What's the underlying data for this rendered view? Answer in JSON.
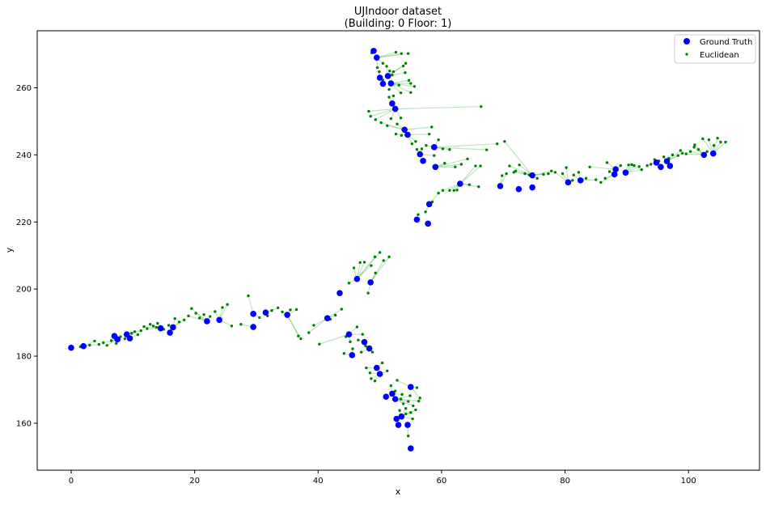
{
  "chart_data": {
    "type": "scatter",
    "title": "UJIndoor dataset",
    "subtitle": "(Building: 0 Floor: 1)",
    "xlabel": "x",
    "ylabel": "y",
    "xlim": [
      -5.5,
      111.5
    ],
    "ylim": [
      146,
      277
    ],
    "xticks": [
      0,
      20,
      40,
      60,
      80,
      100
    ],
    "yticks": [
      160,
      180,
      200,
      220,
      240,
      260
    ],
    "grid": false,
    "legend_position": "top-right",
    "colors": {
      "ground_truth": "#0000ff",
      "euclidean": "#008000",
      "link": "#6fbf6f"
    },
    "series": [
      {
        "name": "Ground Truth",
        "marker": "circle",
        "points": [
          [
            0,
            182.5
          ],
          [
            2,
            183
          ],
          [
            7,
            186
          ],
          [
            7.5,
            185
          ],
          [
            9,
            186.5
          ],
          [
            9.5,
            185.3
          ],
          [
            14.5,
            188.3
          ],
          [
            16,
            187
          ],
          [
            16.5,
            188.6
          ],
          [
            22,
            190.4
          ],
          [
            24,
            190.8
          ],
          [
            29.5,
            188.7
          ],
          [
            29.5,
            192.6
          ],
          [
            31.5,
            193
          ],
          [
            35,
            192.3
          ],
          [
            41.5,
            191.3
          ],
          [
            43.5,
            198.8
          ],
          [
            46.3,
            203
          ],
          [
            48.5,
            202
          ],
          [
            45,
            186.5
          ],
          [
            47.5,
            184.2
          ],
          [
            48.3,
            182.3
          ],
          [
            45.5,
            180.3
          ],
          [
            49.5,
            176.5
          ],
          [
            50,
            174.7
          ],
          [
            52,
            168.8
          ],
          [
            51,
            167.9
          ],
          [
            52.5,
            167.2
          ],
          [
            55,
            170.8
          ],
          [
            53.5,
            162
          ],
          [
            52.7,
            161.3
          ],
          [
            53,
            159.5
          ],
          [
            54.5,
            159.5
          ],
          [
            55,
            152.5
          ],
          [
            49,
            271
          ],
          [
            49.5,
            269
          ],
          [
            50,
            263
          ],
          [
            50.5,
            261.2
          ],
          [
            51.3,
            263.5
          ],
          [
            51.8,
            261.3
          ],
          [
            52,
            255.3
          ],
          [
            52.5,
            253.7
          ],
          [
            54,
            247.5
          ],
          [
            54.5,
            246
          ],
          [
            56.5,
            240.2
          ],
          [
            57,
            238.2
          ],
          [
            58.8,
            242.3
          ],
          [
            59,
            236.4
          ],
          [
            63,
            231.4
          ],
          [
            58,
            225.3
          ],
          [
            56,
            220.7
          ],
          [
            57.8,
            219.5
          ],
          [
            69.5,
            230.7
          ],
          [
            72.5,
            229.8
          ],
          [
            74.7,
            230.3
          ],
          [
            74.7,
            233.9
          ],
          [
            80.5,
            231.8
          ],
          [
            82.5,
            232.4
          ],
          [
            88,
            234.2
          ],
          [
            88.2,
            235.7
          ],
          [
            89.8,
            234.7
          ],
          [
            94.8,
            237.7
          ],
          [
            95.5,
            236.4
          ],
          [
            96.5,
            238.1
          ],
          [
            97,
            236.7
          ],
          [
            102.5,
            240
          ],
          [
            104,
            240.4
          ]
        ]
      },
      {
        "name": "Euclidean",
        "marker": "small-circle",
        "points": [
          [
            1.5,
            182.8
          ],
          [
            3,
            183.3
          ],
          [
            3.8,
            184.5
          ],
          [
            4.5,
            183.5
          ],
          [
            5.2,
            184
          ],
          [
            5.8,
            183.2
          ],
          [
            6.5,
            184.6
          ],
          [
            7.3,
            183.8
          ],
          [
            8,
            185.8
          ],
          [
            8.7,
            185.2
          ],
          [
            9.8,
            186.8
          ],
          [
            10.3,
            187.3
          ],
          [
            10.8,
            186.4
          ],
          [
            11.3,
            187.6
          ],
          [
            11.8,
            188.8
          ],
          [
            12.3,
            188.2
          ],
          [
            12.8,
            189.5
          ],
          [
            13.3,
            189
          ],
          [
            13.8,
            188.6
          ],
          [
            14,
            189.8
          ],
          [
            15,
            188
          ],
          [
            15.8,
            189.2
          ],
          [
            16.8,
            191.2
          ],
          [
            17.5,
            190.2
          ],
          [
            18.3,
            190.8
          ],
          [
            19,
            192
          ],
          [
            19.5,
            194.2
          ],
          [
            20.2,
            192.8
          ],
          [
            20.8,
            191.4
          ],
          [
            21.5,
            192.4
          ],
          [
            22.5,
            191.8
          ],
          [
            23.3,
            193.3
          ],
          [
            24.5,
            194.5
          ],
          [
            25.3,
            195.4
          ],
          [
            26,
            189
          ],
          [
            27.5,
            189.5
          ],
          [
            28.7,
            198
          ],
          [
            30.5,
            191.5
          ],
          [
            31.8,
            192
          ],
          [
            32.5,
            193.6
          ],
          [
            33.5,
            194.4
          ],
          [
            34.2,
            193.2
          ],
          [
            35.5,
            193.8
          ],
          [
            36.5,
            193.9
          ],
          [
            37.2,
            185.2
          ],
          [
            36.8,
            186
          ],
          [
            38.5,
            187
          ],
          [
            39.3,
            189.2
          ],
          [
            40.2,
            183.6
          ],
          [
            42,
            191
          ],
          [
            42.8,
            192.2
          ],
          [
            43.8,
            194
          ],
          [
            44.5,
            185.8
          ],
          [
            45.2,
            184.3
          ],
          [
            45.6,
            182.2
          ],
          [
            44.2,
            180.8
          ],
          [
            46.5,
            184.8
          ],
          [
            47,
            181.2
          ],
          [
            47.7,
            183
          ],
          [
            48.8,
            181.2
          ],
          [
            46.3,
            188.7
          ],
          [
            47.2,
            186.5
          ],
          [
            45,
            201.8
          ],
          [
            45.8,
            206.3
          ],
          [
            46.8,
            207.9
          ],
          [
            47.5,
            208
          ],
          [
            48.6,
            207
          ],
          [
            49.2,
            209.6
          ],
          [
            50,
            210.9
          ],
          [
            50.6,
            208.5
          ],
          [
            51.5,
            209.6
          ],
          [
            48.1,
            198.8
          ],
          [
            49.3,
            204.8
          ],
          [
            47.8,
            176.5
          ],
          [
            48.4,
            175
          ],
          [
            48.6,
            173.3
          ],
          [
            49.2,
            172.6
          ],
          [
            50.4,
            178
          ],
          [
            51.2,
            175.6
          ],
          [
            51.8,
            171.2
          ],
          [
            52.8,
            172.8
          ],
          [
            52.5,
            169.6
          ],
          [
            53.4,
            167.2
          ],
          [
            53.8,
            165.8
          ],
          [
            54.2,
            164.4
          ],
          [
            54.6,
            166.5
          ],
          [
            55,
            163.2
          ],
          [
            55.4,
            165.2
          ],
          [
            55.8,
            164
          ],
          [
            56.3,
            166.6
          ],
          [
            56.5,
            167.5
          ],
          [
            54.2,
            162.8
          ],
          [
            55.3,
            161.3
          ],
          [
            54.6,
            156.2
          ],
          [
            53.6,
            168.6
          ],
          [
            56,
            170.6
          ],
          [
            53.2,
            163.8
          ],
          [
            54.9,
            168.2
          ],
          [
            48.2,
            253
          ],
          [
            48.5,
            251.5
          ],
          [
            49.3,
            250.5
          ],
          [
            50.2,
            249.6
          ],
          [
            51.2,
            248.7
          ],
          [
            51.8,
            250.8
          ],
          [
            52.8,
            249.2
          ],
          [
            53.4,
            251
          ],
          [
            52.6,
            246.2
          ],
          [
            53.5,
            245.8
          ],
          [
            55.2,
            243.3
          ],
          [
            55.8,
            244
          ],
          [
            56,
            241.6
          ],
          [
            56.8,
            241.8
          ],
          [
            57.5,
            242.8
          ],
          [
            58,
            246.2
          ],
          [
            58.4,
            248.3
          ],
          [
            59.5,
            244.5
          ],
          [
            60.2,
            241.8
          ],
          [
            61.3,
            241.6
          ],
          [
            62.2,
            236.4
          ],
          [
            63.2,
            237.2
          ],
          [
            64.2,
            238.8
          ],
          [
            65.5,
            236.7
          ],
          [
            66.3,
            236.7
          ],
          [
            67.3,
            241.5
          ],
          [
            69,
            243.3
          ],
          [
            70.2,
            244
          ],
          [
            66.4,
            254.4
          ],
          [
            58.8,
            239.8
          ],
          [
            60.5,
            237.5
          ],
          [
            48.7,
            270.4
          ],
          [
            49.6,
            266
          ],
          [
            49.9,
            264.8
          ],
          [
            50.5,
            267.3
          ],
          [
            51.1,
            266.4
          ],
          [
            51.6,
            265
          ],
          [
            52.2,
            264.8
          ],
          [
            52.6,
            270.6
          ],
          [
            53.5,
            270.2
          ],
          [
            53.8,
            266.5
          ],
          [
            54.1,
            264.5
          ],
          [
            54.6,
            270.2
          ],
          [
            54.7,
            262.2
          ],
          [
            55,
            261.3
          ],
          [
            55.6,
            260.4
          ],
          [
            55,
            258.6
          ],
          [
            53.4,
            258.5
          ],
          [
            52.2,
            257.6
          ],
          [
            51.5,
            257.2
          ],
          [
            50.5,
            262.3
          ],
          [
            53.1,
            260.8
          ],
          [
            52,
            263.8
          ],
          [
            51.5,
            259.5
          ],
          [
            54.2,
            267.3
          ],
          [
            56.2,
            222.2
          ],
          [
            57.4,
            223
          ],
          [
            57.8,
            225.6
          ],
          [
            58.5,
            226
          ],
          [
            59.5,
            228.6
          ],
          [
            60.2,
            229.4
          ],
          [
            61.3,
            229.4
          ],
          [
            62,
            229.4
          ],
          [
            62.5,
            229.5
          ],
          [
            64.5,
            231.1
          ],
          [
            66,
            230.5
          ],
          [
            69.8,
            233.8
          ],
          [
            70.5,
            234.4
          ],
          [
            71,
            236.7
          ],
          [
            71.7,
            234.8
          ],
          [
            72.6,
            237
          ],
          [
            73.5,
            234.4
          ],
          [
            74.2,
            234
          ],
          [
            75.5,
            233
          ],
          [
            76.5,
            234.2
          ],
          [
            77.3,
            234.4
          ],
          [
            78.4,
            234.8
          ],
          [
            79.6,
            234.4
          ],
          [
            80.2,
            236.2
          ],
          [
            81.2,
            232.4
          ],
          [
            81.4,
            234
          ],
          [
            82.2,
            234.8
          ],
          [
            83.4,
            233
          ],
          [
            84,
            236.4
          ],
          [
            85,
            232.6
          ],
          [
            85.8,
            231.8
          ],
          [
            86.5,
            233
          ],
          [
            86.8,
            237.7
          ],
          [
            87.2,
            235
          ],
          [
            89,
            236.8
          ],
          [
            90.3,
            237
          ],
          [
            90.8,
            237.1
          ],
          [
            91.2,
            236.8
          ],
          [
            92,
            236.5
          ],
          [
            92.4,
            235.6
          ],
          [
            93.3,
            236.8
          ],
          [
            93.9,
            237.2
          ],
          [
            94.5,
            238.6
          ],
          [
            95.2,
            238.2
          ],
          [
            96,
            239.4
          ],
          [
            96.8,
            239
          ],
          [
            97.4,
            240
          ],
          [
            98.3,
            239.8
          ],
          [
            99,
            240.5
          ],
          [
            99.6,
            240.3
          ],
          [
            100.3,
            241
          ],
          [
            100.9,
            242.3
          ],
          [
            101.6,
            241.6
          ],
          [
            102.3,
            244.8
          ],
          [
            103.3,
            244.5
          ],
          [
            104.1,
            242.8
          ],
          [
            104.7,
            245
          ],
          [
            105.2,
            243.8
          ],
          [
            106,
            243.8
          ],
          [
            101,
            243
          ],
          [
            103,
            241
          ],
          [
            98.7,
            241.3
          ],
          [
            77.8,
            235.2
          ],
          [
            72,
            235.2
          ]
        ]
      }
    ]
  }
}
